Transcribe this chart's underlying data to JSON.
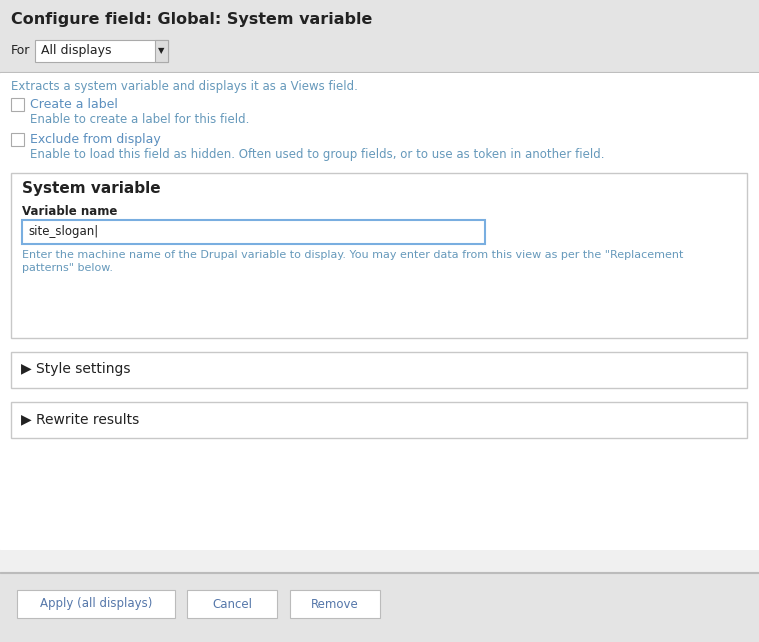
{
  "title": "Configure field: Global: System variable",
  "for_label": "For",
  "dropdown_text": "All displays",
  "subtitle": "Extracts a system variable and displays it as a Views field.",
  "checkbox1_label": "Create a label",
  "checkbox1_desc": "Enable to create a label for this field.",
  "checkbox2_label": "Exclude from display",
  "checkbox2_desc": "Enable to load this field as hidden. Often used to group fields, or to use as token in another field.",
  "section_title": "System variable",
  "field_label": "Variable name",
  "field_value": "site_slogan|",
  "field_desc1": "Enter the machine name of the Drupal variable to display. You may enter data from this view as per the \"Replacement",
  "field_desc2": "patterns\" below.",
  "collapsible1": "▶ Style settings",
  "collapsible2": "▶ Rewrite results",
  "btn1": "Apply (all displays)",
  "btn2": "Cancel",
  "btn3": "Remove",
  "bg_header": "#e4e4e4",
  "bg_main": "#f0f0f0",
  "bg_white": "#ffffff",
  "bg_footer": "#e4e4e4",
  "border_color": "#cccccc",
  "border_dark": "#aaaaaa",
  "text_dark": "#222222",
  "text_blue_link": "#5b8fbe",
  "text_desc": "#6699bb",
  "text_btn": "#5577aa",
  "input_border": "#79aee0",
  "btn_text": "#5577aa",
  "btn_border": "#bbbbbb",
  "header_sep": "#bbbbbb",
  "section_border": "#c8c8c8"
}
